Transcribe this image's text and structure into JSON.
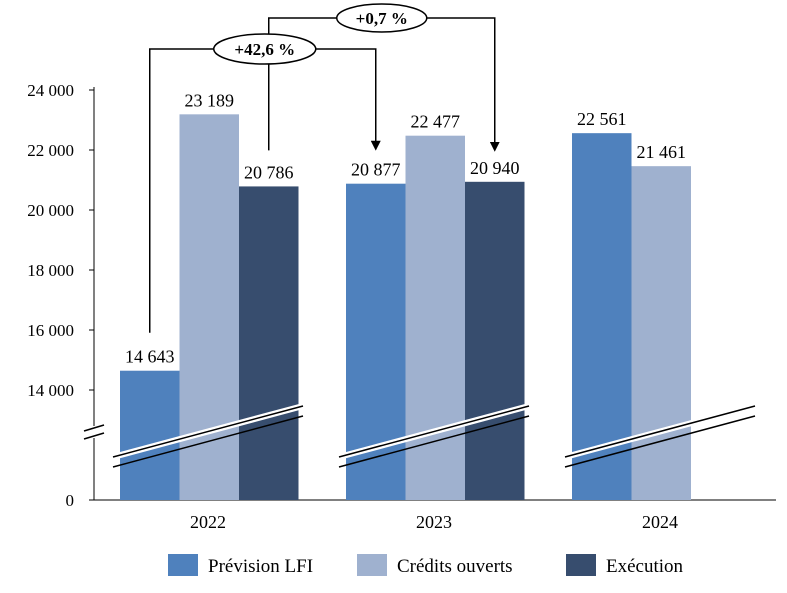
{
  "chart_data": {
    "type": "bar",
    "categories": [
      "2022",
      "2023",
      "2024"
    ],
    "series": [
      {
        "name": "Prévision LFI",
        "color": "#4f81bd",
        "values": [
          14643,
          20877,
          22561
        ],
        "labels": [
          "14 643",
          "20 877",
          "22 561"
        ]
      },
      {
        "name": "Crédits ouverts",
        "color": "#9fb1cf",
        "values": [
          23189,
          22477,
          21461
        ],
        "labels": [
          "23 189",
          "22 477",
          "21 461"
        ]
      },
      {
        "name": "Exécution",
        "color": "#374d6e",
        "values": [
          20786,
          20940,
          null
        ],
        "labels": [
          "20 786",
          "20 940",
          ""
        ]
      }
    ],
    "y_ticks": [
      {
        "value": 0,
        "label": "0"
      },
      {
        "value": 14000,
        "label": "14 000"
      },
      {
        "value": 16000,
        "label": "16 000"
      },
      {
        "value": 18000,
        "label": "18 000"
      },
      {
        "value": 20000,
        "label": "20 000"
      },
      {
        "value": 22000,
        "label": "22 000"
      },
      {
        "value": 24000,
        "label": "24 000"
      }
    ],
    "ylim": [
      0,
      24000
    ],
    "axis_break": true,
    "grid": false,
    "legend_position": "bottom",
    "annotations": [
      {
        "label": "+42,6 %",
        "from": "Prévision LFI 2022",
        "to": "Prévision LFI 2023"
      },
      {
        "label": "+0,7 %",
        "from": "Exécution 2022",
        "to": "Exécution 2023"
      }
    ]
  }
}
